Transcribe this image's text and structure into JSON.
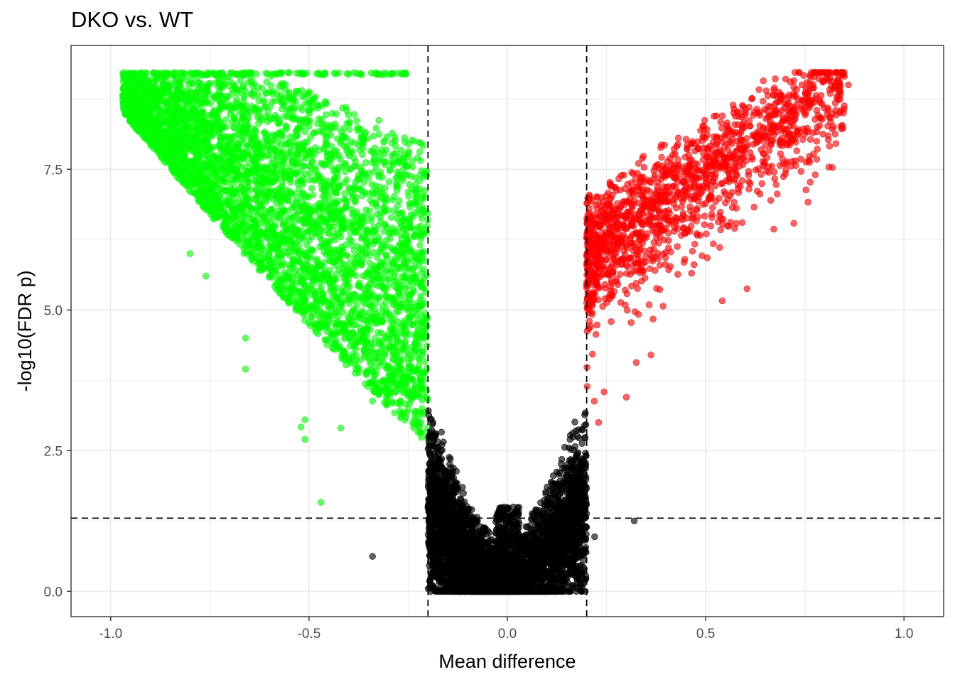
{
  "chart_data": {
    "type": "scatter",
    "title": "DKO vs. WT",
    "xlabel": "Mean difference",
    "ylabel": "-log10(FDR p)",
    "xlim": [
      -1.1,
      1.1
    ],
    "ylim": [
      -0.45,
      9.7
    ],
    "x_ticks": [
      -1.0,
      -0.5,
      0.0,
      0.5,
      1.0
    ],
    "x_tick_labels": [
      "-1.0",
      "-0.5",
      "0.0",
      "0.5",
      "1.0"
    ],
    "y_ticks": [
      0.0,
      2.5,
      5.0,
      7.5
    ],
    "y_tick_labels": [
      "0.0",
      "2.5",
      "5.0",
      "7.5"
    ],
    "grid": true,
    "legend": "none",
    "thresholds": {
      "x": [
        -0.2,
        0.2
      ],
      "y": 1.3
    },
    "colors": {
      "down": "#00ff00",
      "up": "#ff0000",
      "ns": "#000000",
      "threshold_line": "#000000",
      "grid": "#ebebeb"
    },
    "groups": [
      {
        "group": "down",
        "color": "#00ff00",
        "description_points": "left branch, mean difference < -0.2, FDR significant"
      },
      {
        "group": "ns",
        "color": "#000000",
        "description_points": "central V, |mean difference| < 0.2"
      },
      {
        "group": "up",
        "color": "#ff0000",
        "description_points": "right branch, mean difference > 0.2, FDR significant"
      }
    ],
    "outliers": [
      {
        "x": -0.8,
        "y": 6.0,
        "group": "down"
      },
      {
        "x": -0.76,
        "y": 5.6,
        "group": "down"
      },
      {
        "x": -0.66,
        "y": 4.5,
        "group": "down"
      },
      {
        "x": -0.66,
        "y": 3.95,
        "group": "down"
      },
      {
        "x": -0.51,
        "y": 3.05,
        "group": "down"
      },
      {
        "x": -0.52,
        "y": 2.92,
        "group": "down"
      },
      {
        "x": -0.51,
        "y": 2.7,
        "group": "down"
      },
      {
        "x": -0.42,
        "y": 2.9,
        "group": "down"
      },
      {
        "x": -0.47,
        "y": 1.58,
        "group": "down"
      },
      {
        "x": -0.34,
        "y": 3.38,
        "group": "down"
      },
      {
        "x": -0.34,
        "y": 0.62,
        "group": "ns"
      },
      {
        "x": 0.22,
        "y": 0.97,
        "group": "ns"
      },
      {
        "x": 0.32,
        "y": 1.25,
        "group": "ns"
      },
      {
        "x": 0.12,
        "y": 0.24,
        "group": "ns"
      },
      {
        "x": -0.07,
        "y": 0.1,
        "group": "ns"
      },
      {
        "x": 0.86,
        "y": 9.0,
        "group": "up"
      },
      {
        "x": 0.85,
        "y": 9.15,
        "group": "up"
      },
      {
        "x": 0.76,
        "y": 8.85,
        "group": "up"
      },
      {
        "x": 0.3,
        "y": 3.45,
        "group": "up"
      },
      {
        "x": 0.23,
        "y": 3.0,
        "group": "up"
      }
    ]
  }
}
